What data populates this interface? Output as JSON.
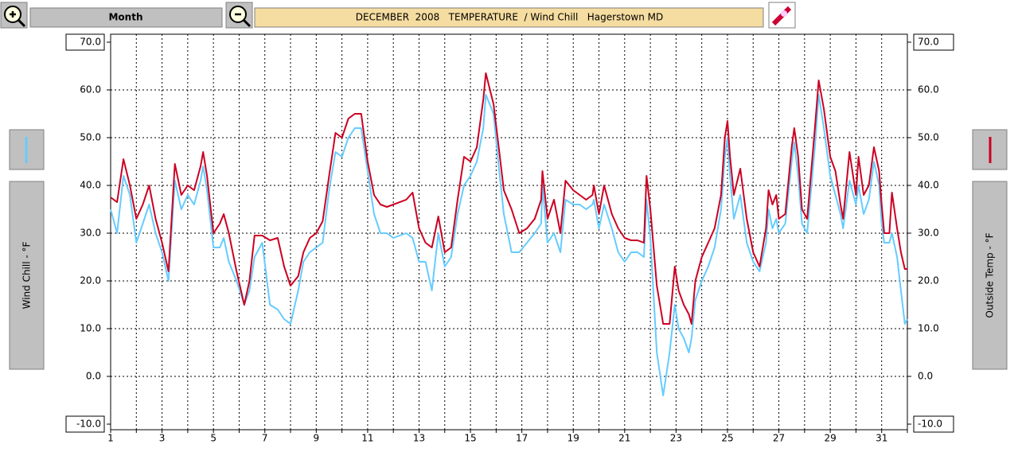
{
  "ui": {
    "period_button": "Month"
  },
  "chart_data": {
    "type": "line",
    "title": "DECEMBER  2008   TEMPERATURE  / Wind Chill   Hagerstown MD",
    "x": [
      1.0,
      1.25,
      1.5,
      1.75,
      2.0,
      2.25,
      2.5,
      2.75,
      3.0,
      3.25,
      3.5,
      3.75,
      4.0,
      4.25,
      4.5,
      4.6,
      4.75,
      5.0,
      5.25,
      5.4,
      5.6,
      5.9,
      6.2,
      6.4,
      6.6,
      6.9,
      7.2,
      7.5,
      7.75,
      8.0,
      8.3,
      8.5,
      8.75,
      9.0,
      9.25,
      9.5,
      9.75,
      10.0,
      10.25,
      10.5,
      10.75,
      11.0,
      11.25,
      11.5,
      11.75,
      12.0,
      12.5,
      12.75,
      13.0,
      13.25,
      13.5,
      13.75,
      14.0,
      14.25,
      14.5,
      14.75,
      15.0,
      15.25,
      15.5,
      15.6,
      15.9,
      16.1,
      16.3,
      16.6,
      16.9,
      17.2,
      17.5,
      17.75,
      17.8,
      18.0,
      18.25,
      18.5,
      18.7,
      19.0,
      19.25,
      19.5,
      19.75,
      19.8,
      20.0,
      20.2,
      20.5,
      20.75,
      21.0,
      21.25,
      21.5,
      21.75,
      21.85,
      22.0,
      22.25,
      22.5,
      22.75,
      22.95,
      23.1,
      23.3,
      23.5,
      23.6,
      23.75,
      24.0,
      24.25,
      24.5,
      24.75,
      24.9,
      25.0,
      25.1,
      25.25,
      25.5,
      25.75,
      26.0,
      26.25,
      26.5,
      26.6,
      26.75,
      26.9,
      27.0,
      27.25,
      27.5,
      27.6,
      27.75,
      27.9,
      28.1,
      28.4,
      28.55,
      28.75,
      29.0,
      29.2,
      29.4,
      29.5,
      29.75,
      30.0,
      30.1,
      30.3,
      30.5,
      30.7,
      30.9,
      31.0,
      31.1,
      31.3,
      31.4,
      31.6,
      31.75,
      31.9,
      32.0
    ],
    "series": [
      {
        "name": "Outside Temp - °F",
        "color": "#cc0022",
        "axis": "y2",
        "values": [
          37.5,
          36.5,
          45.5,
          40,
          33,
          36,
          40,
          33,
          28,
          22,
          44.5,
          38,
          40,
          39,
          44,
          47,
          42,
          30,
          32,
          34,
          30,
          22,
          15,
          20,
          29.5,
          29.5,
          28.5,
          29,
          23,
          19,
          21,
          26,
          29,
          30,
          32.5,
          42,
          51,
          50,
          54,
          55,
          55,
          45,
          38,
          36,
          35.5,
          36,
          37,
          38.5,
          31,
          28,
          27,
          33.5,
          26,
          27,
          37,
          46,
          45,
          48,
          58,
          63.5,
          57,
          48,
          39,
          35,
          30,
          31,
          33,
          37,
          43,
          33,
          37,
          30,
          41,
          39,
          38,
          37,
          38,
          40,
          34,
          40,
          34,
          31,
          29,
          28.5,
          28.5,
          28,
          42,
          35,
          19,
          11,
          11,
          23,
          18,
          15,
          13,
          11,
          20,
          25,
          28,
          31,
          38,
          50,
          53.5,
          46,
          38,
          43.5,
          33,
          26,
          23,
          31,
          39,
          36,
          38,
          33,
          34,
          48,
          52,
          46,
          35,
          33,
          52,
          62,
          56,
          46,
          43,
          36,
          33,
          47,
          38,
          46,
          38,
          40,
          48,
          43,
          36,
          30,
          30,
          38.5,
          31,
          26,
          22.5,
          22.5
        ]
      },
      {
        "name": "Wind Chill - °F",
        "color": "#66ccff",
        "values": [
          35,
          30,
          42,
          38,
          28,
          32,
          36,
          30,
          26,
          20,
          41,
          35,
          38,
          36,
          41,
          44,
          39,
          27,
          27,
          29,
          24,
          20,
          15,
          18,
          25,
          28,
          15,
          14,
          12,
          11,
          18,
          24,
          26,
          27,
          28,
          39,
          47,
          46,
          50,
          52,
          52,
          43,
          34,
          30,
          30,
          29,
          30,
          29,
          24,
          24,
          18,
          30,
          23,
          25,
          34,
          40,
          42,
          45,
          52,
          59,
          55,
          44,
          34,
          26,
          26,
          28,
          30,
          32,
          40,
          28,
          30,
          26,
          37,
          36,
          36,
          35,
          36,
          37,
          31,
          36,
          31,
          26,
          24,
          26,
          26,
          25,
          37,
          29,
          5,
          -4,
          5,
          15,
          10,
          8,
          5,
          8,
          16,
          20,
          23,
          27,
          35,
          46,
          50,
          42,
          33,
          38,
          28,
          24,
          22,
          28,
          35,
          31,
          33,
          30,
          32,
          45,
          49,
          42,
          32,
          30,
          48,
          59,
          52,
          42,
          38,
          34,
          31,
          41,
          36,
          40,
          34,
          37,
          45,
          40,
          32,
          28,
          28,
          30,
          25,
          18,
          11,
          12
        ]
      }
    ],
    "xlim": [
      1,
      32
    ],
    "xticks": [
      1,
      3,
      5,
      7,
      9,
      11,
      13,
      15,
      17,
      19,
      21,
      23,
      25,
      27,
      29,
      31
    ],
    "x_minor_ticks": [
      2,
      4,
      6,
      8,
      10,
      12,
      14,
      16,
      18,
      20,
      22,
      24,
      26,
      28,
      30,
      32
    ],
    "ylim": [
      -10,
      70
    ],
    "yticks": [
      {
        "value": -10,
        "label": "-10.0"
      },
      {
        "value": 0,
        "label": "0.0"
      },
      {
        "value": 10,
        "label": "10.0"
      },
      {
        "value": 20,
        "label": "20.0"
      },
      {
        "value": 30,
        "label": "30.0"
      },
      {
        "value": 40,
        "label": "40.0"
      },
      {
        "value": 50,
        "label": "50.0"
      },
      {
        "value": 60,
        "label": "60.0"
      },
      {
        "value": 70,
        "label": "70.0"
      }
    ],
    "y2lim": [
      -10,
      70
    ],
    "y2ticks": [
      {
        "value": -10,
        "label": "-10.0"
      },
      {
        "value": 0,
        "label": "0.0"
      },
      {
        "value": 10,
        "label": "10.0"
      },
      {
        "value": 20,
        "label": "20.0"
      },
      {
        "value": 30,
        "label": "30.0"
      },
      {
        "value": 40,
        "label": "40.0"
      },
      {
        "value": 50,
        "label": "50.0"
      },
      {
        "value": 60,
        "label": "60.0"
      },
      {
        "value": 70,
        "label": "70.0"
      }
    ],
    "grid": true
  }
}
